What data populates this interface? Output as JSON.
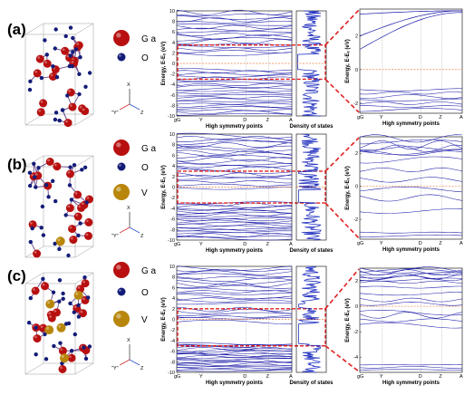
{
  "panels": [
    {
      "label": "(a)",
      "legend": [
        {
          "element": "G a",
          "color": "#b81010"
        },
        {
          "element": "O",
          "color": "#141c78"
        }
      ]
    },
    {
      "label": "(b)",
      "legend": [
        {
          "element": "G a",
          "color": "#b81010"
        },
        {
          "element": "O",
          "color": "#141c78"
        },
        {
          "element": "V",
          "color": "#b8860b"
        }
      ]
    },
    {
      "label": "(c)",
      "legend": [
        {
          "element": "G a",
          "color": "#b81010"
        },
        {
          "element": "O",
          "color": "#141c78"
        },
        {
          "element": "V",
          "color": "#b8860b"
        }
      ]
    }
  ],
  "axis_triad": {
    "up": "X",
    "left": "\"Y\"",
    "right": "Z"
  },
  "chart_data": [
    {
      "panel": "(a)",
      "type": "line",
      "role": "band-structure",
      "xlabel": "High symmetry points",
      "ylabel": "Energy, E-Eₓ (eV)",
      "kpoints": [
        "gG",
        "Y",
        "D",
        "Z",
        "A"
      ],
      "ylim": [
        -10,
        10
      ],
      "yticks": [
        10,
        8,
        6,
        4,
        2,
        0,
        -2,
        -4,
        -6,
        -8,
        -10
      ],
      "bands": {
        "valence_top": -1.2,
        "valence_bottom": -10,
        "conduction_min": 1.8,
        "conduction_top": 10
      },
      "highlight": [
        -3,
        3.5
      ]
    },
    {
      "panel": "(a)",
      "type": "line",
      "role": "density-of-states",
      "xlabel": "Density of states",
      "ylim": [
        -10,
        10
      ]
    },
    {
      "panel": "(a)",
      "type": "line",
      "role": "band-structure-zoom",
      "kpoints": [
        "gG",
        "Y",
        "D",
        "Z",
        "A"
      ],
      "ylim": [
        -2.6,
        3.6
      ],
      "yticks": [
        2,
        0,
        -2
      ],
      "xlabel": "High symmetry points",
      "ylabel": "Energy, E-Eₓ (eV)"
    },
    {
      "panel": "(b)",
      "type": "line",
      "role": "band-structure",
      "xlabel": "High symmetry points",
      "ylabel": "Energy, E-Eₓ (eV)",
      "kpoints": [
        "gG",
        "Y",
        "D",
        "Z",
        "A"
      ],
      "ylim": [
        -10,
        10
      ],
      "yticks": [
        10,
        8,
        6,
        4,
        2,
        0,
        -2,
        -4,
        -6,
        -8,
        -10
      ],
      "bands": {
        "valence_top": -3,
        "valence_bottom": -10,
        "midgap": [
          -0.2,
          0.4,
          1.0,
          1.6,
          2.0,
          2.3
        ],
        "conduction_top": 10
      },
      "highlight": [
        -3,
        3
      ]
    },
    {
      "panel": "(b)",
      "type": "line",
      "role": "density-of-states",
      "xlabel": "Density of states",
      "ylim": [
        -10,
        10
      ]
    },
    {
      "panel": "(b)",
      "type": "line",
      "role": "band-structure-zoom",
      "kpoints": [
        "gG",
        "Y",
        "D",
        "Z",
        "A"
      ],
      "ylim": [
        -3.2,
        3.0
      ],
      "yticks": [
        2,
        0,
        -2
      ],
      "xlabel": "High symmetry points",
      "ylabel": "Energy, E-Eₓ (eV)"
    },
    {
      "panel": "(c)",
      "type": "line",
      "role": "band-structure",
      "xlabel": "High symmetry points",
      "ylabel": "Energy, E-Eₓ (eV)",
      "kpoints": [
        "gG",
        "Y",
        "D",
        "Z",
        "A"
      ],
      "ylim": [
        -10,
        10
      ],
      "yticks": [
        10,
        8,
        6,
        4,
        2,
        0,
        -2,
        -4,
        -6,
        -8,
        -10
      ],
      "bands": {
        "valence_top": -4.6,
        "valence_bottom": -10,
        "midgap": [
          -0.5,
          0.2,
          0.5,
          1.0,
          1.5,
          1.9
        ],
        "conduction_top": 10
      },
      "highlight": [
        -5,
        2
      ]
    },
    {
      "panel": "(c)",
      "type": "line",
      "role": "density-of-states",
      "xlabel": "Density of states",
      "ylim": [
        -10,
        10
      ]
    },
    {
      "panel": "(c)",
      "type": "line",
      "role": "band-structure-zoom",
      "kpoints": [
        "gG",
        "Y",
        "D",
        "Z",
        "A"
      ],
      "ylim": [
        -5.2,
        3.0
      ],
      "yticks": [
        2,
        0,
        -2,
        -4
      ],
      "xlabel": "High symmetry points",
      "ylabel": "Energy, E-Eₓ (eV)"
    }
  ],
  "colors": {
    "band": "#1a1aa8",
    "dos": "#2030c0",
    "highlight": "#e02020",
    "fermi": "#e8804a",
    "frame": "#000000"
  }
}
